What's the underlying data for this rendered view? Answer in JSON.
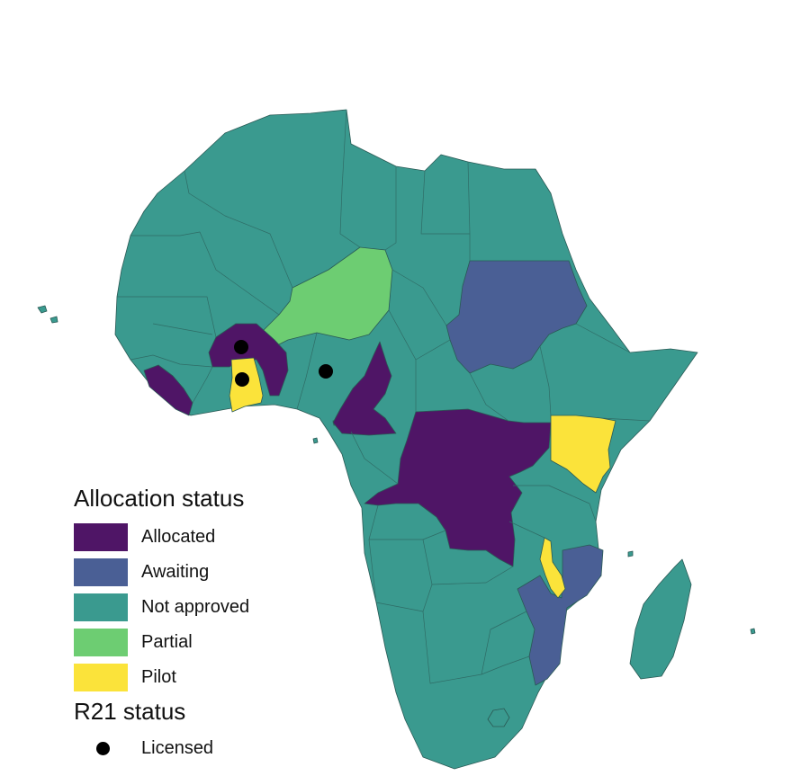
{
  "colors": {
    "allocated": "#4f1566",
    "awaiting": "#4a5f95",
    "not_approved": "#3a9a8f",
    "partial": "#6dcd72",
    "pilot": "#fbe33a",
    "licensed_marker": "#000000"
  },
  "legend": {
    "allocation_title": "Allocation status",
    "items": [
      {
        "label": "Allocated",
        "status": "allocated"
      },
      {
        "label": "Awaiting",
        "status": "awaiting"
      },
      {
        "label": "Not approved",
        "status": "not_approved"
      },
      {
        "label": "Partial",
        "status": "partial"
      },
      {
        "label": "Pilot",
        "status": "pilot"
      }
    ],
    "r21_title": "R21 status",
    "r21_items": [
      {
        "label": "Licensed"
      }
    ]
  }
}
